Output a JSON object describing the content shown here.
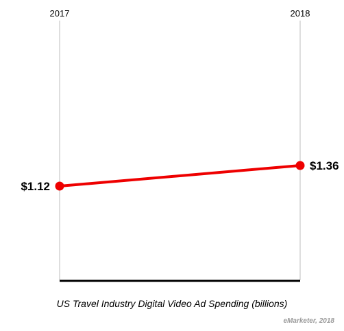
{
  "chart_data": {
    "type": "line",
    "x": [
      "2017",
      "2018"
    ],
    "series": [
      {
        "values": [
          1.12,
          1.36
        ],
        "color": "#ee0000"
      }
    ],
    "data_labels": [
      "$1.12",
      "$1.36"
    ],
    "title": "",
    "xlabel": "US Travel Industry Digital Video Ad Spending (billions)",
    "ylabel": "",
    "grid": false
  },
  "source": "eMarketer, 2018"
}
